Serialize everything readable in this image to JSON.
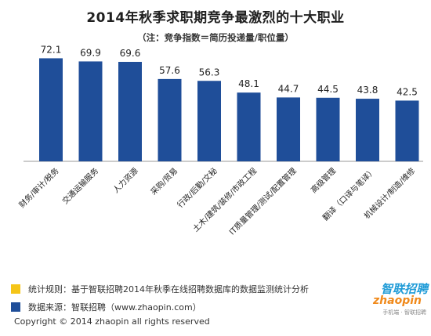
{
  "title": "2014年秋季求职期竞争最激烈的十大职业",
  "subtitle": "（注：竞争指数＝简历投递量/职位量）",
  "chart_data": {
    "type": "bar",
    "title": "2014年秋季求职期竞争最激烈的十大职业",
    "categories": [
      "财务/审计/税务",
      "交通运输服务",
      "人力资源",
      "采购/贸易",
      "行政/后勤/文秘",
      "土木/建筑/装修/市政工程",
      "IT质量管理/测试/配置管理",
      "高级管理",
      "翻译（口译与笔译）",
      "机械设计/制造/维修"
    ],
    "values": [
      72.1,
      69.9,
      69.6,
      57.6,
      56.3,
      48.1,
      44.7,
      44.5,
      43.8,
      42.5
    ],
    "value_labels": [
      "72.1",
      "69.9",
      "69.6",
      "57.6",
      "56.3",
      "48.1",
      "44.7",
      "44.5",
      "43.8",
      "42.5"
    ],
    "ylim": [
      0,
      80
    ],
    "grid": false,
    "bar_color": "#1f4e99"
  },
  "legend": [
    {
      "text": "统计规则：基于智联招聘2014年秋季在线招聘数据库的数据监测统计分析",
      "color": "#f5c518"
    },
    {
      "text": "数据来源：智联招聘（www.zhaopin.com）",
      "color": "#1f4e99"
    }
  ],
  "copyright": "Copyright  ©  2014 zhaopin all rights reserved",
  "logo": {
    "cn": "智联招聘",
    "en": "zhaopin",
    "sub": "手机端 · 智联招聘"
  }
}
